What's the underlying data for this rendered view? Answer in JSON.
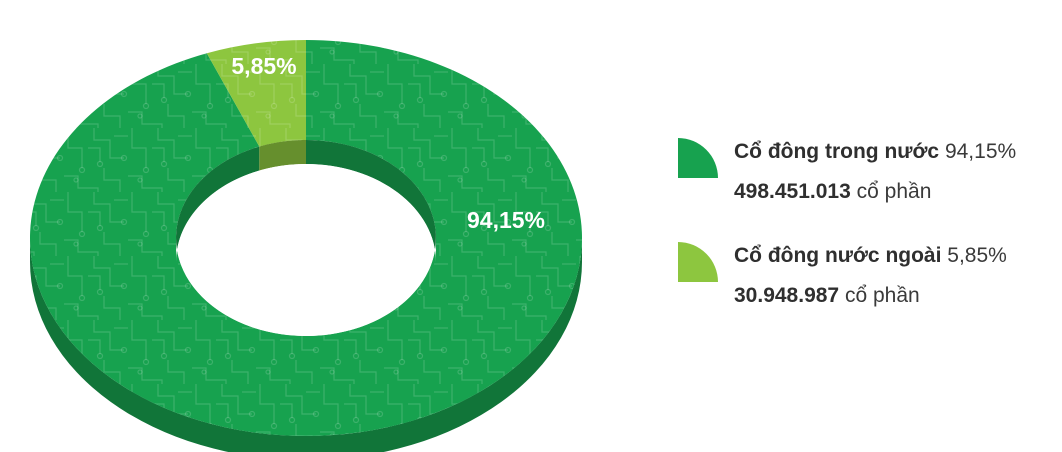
{
  "chart_data": {
    "type": "pie",
    "variant": "donut-3d",
    "categories": [
      "Cổ đông trong nước",
      "Cổ đông nước ngoài"
    ],
    "values": [
      94.15,
      5.85
    ],
    "value_labels": [
      "94,15%",
      "5,85%"
    ],
    "shares": [
      "498.451.013",
      "30.948.987"
    ],
    "colors": [
      "#17a24f",
      "#8dc63f"
    ],
    "legend_placement": "right"
  },
  "legend": {
    "items": [
      {
        "name": "Cổ đông trong nước",
        "percent": "94,15%",
        "shares": "498.451.013",
        "unit": "cổ phần",
        "color": "#17a24f"
      },
      {
        "name": "Cổ đông nước ngoài",
        "percent": "5,85%",
        "shares": "30.948.987",
        "unit": "cổ phần",
        "color": "#8dc63f"
      }
    ]
  }
}
